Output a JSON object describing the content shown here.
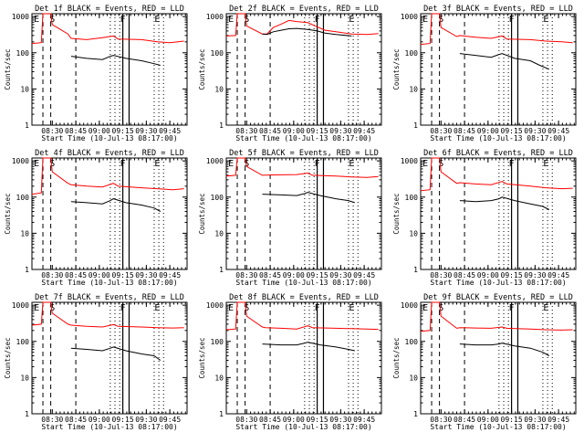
{
  "figure": {
    "xtick_labels": [
      "08:30",
      "08:45",
      "09:00",
      "09:15",
      "09:30",
      "09:45"
    ],
    "ytick_labels": [
      "1",
      "10",
      "100",
      "1000"
    ],
    "ylabel": "Counts/sec",
    "xlabel": "Start Time (10-Jul-13 08:17:00)",
    "markers": [
      "E",
      "S",
      "F",
      "E"
    ],
    "colors": {
      "events": "#000000",
      "lld": "#ff0000"
    }
  },
  "chart_data": [
    {
      "type": "line",
      "title": "Det 1f BLACK = Events, RED = LLD",
      "xlabel": "Start Time (10-Jul-13 08:17:00)",
      "ylabel": "Counts/sec",
      "x_unit": "minutes after 08:17:00",
      "xlim": [
        0,
        99
      ],
      "ylim": [
        1,
        1200
      ],
      "ylog": true,
      "series": [
        {
          "name": "LLD",
          "color": "#ff0000",
          "points": [
            [
              0,
              180
            ],
            [
              6,
              190
            ],
            [
              7,
              1200
            ],
            [
              12,
              1200
            ],
            [
              13,
              600
            ],
            [
              23,
              330
            ],
            [
              25,
              250
            ],
            [
              35,
              230
            ],
            [
              45,
              260
            ],
            [
              52,
              290
            ],
            [
              55,
              240
            ],
            [
              70,
              230
            ],
            [
              80,
              200
            ],
            [
              88,
              190
            ],
            [
              97,
              210
            ]
          ]
        },
        {
          "name": "Events",
          "color": "#000000",
          "points": [
            [
              25,
              80
            ],
            [
              35,
              70
            ],
            [
              45,
              65
            ],
            [
              50,
              80
            ],
            [
              52,
              85
            ],
            [
              60,
              70
            ],
            [
              70,
              60
            ],
            [
              78,
              50
            ],
            [
              82,
              45
            ]
          ]
        }
      ]
    },
    {
      "type": "line",
      "title": "Det 2f BLACK = Events, RED = LLD",
      "xlabel": "Start Time (10-Jul-13 08:17:00)",
      "ylabel": "Counts/sec",
      "x_unit": "minutes after 08:17:00",
      "xlim": [
        0,
        99
      ],
      "ylim": [
        1,
        1200
      ],
      "ylog": true,
      "series": [
        {
          "name": "LLD",
          "color": "#ff0000",
          "points": [
            [
              0,
              290
            ],
            [
              6,
              300
            ],
            [
              7,
              1200
            ],
            [
              12,
              1200
            ],
            [
              13,
              550
            ],
            [
              23,
              330
            ],
            [
              26,
              330
            ],
            [
              30,
              500
            ],
            [
              35,
              620
            ],
            [
              40,
              780
            ],
            [
              45,
              730
            ],
            [
              52,
              680
            ],
            [
              58,
              520
            ],
            [
              63,
              420
            ],
            [
              70,
              380
            ],
            [
              80,
              330
            ],
            [
              90,
              320
            ],
            [
              97,
              340
            ]
          ]
        },
        {
          "name": "Events",
          "color": "#000000",
          "points": [
            [
              23,
              330
            ],
            [
              26,
              320
            ],
            [
              30,
              380
            ],
            [
              35,
              420
            ],
            [
              40,
              460
            ],
            [
              45,
              470
            ],
            [
              52,
              440
            ],
            [
              58,
              400
            ],
            [
              63,
              350
            ],
            [
              70,
              320
            ],
            [
              80,
              290
            ]
          ]
        }
      ]
    },
    {
      "type": "line",
      "title": "Det 3f BLACK = Events, RED = LLD",
      "xlabel": "Start Time (10-Jul-13 08:17:00)",
      "ylabel": "Counts/sec",
      "x_unit": "minutes after 08:17:00",
      "xlim": [
        0,
        99
      ],
      "ylim": [
        1,
        1200
      ],
      "ylog": true,
      "series": [
        {
          "name": "LLD",
          "color": "#ff0000",
          "points": [
            [
              0,
              170
            ],
            [
              6,
              180
            ],
            [
              7,
              1200
            ],
            [
              12,
              1200
            ],
            [
              13,
              500
            ],
            [
              23,
              280
            ],
            [
              25,
              300
            ],
            [
              35,
              270
            ],
            [
              45,
              250
            ],
            [
              52,
              290
            ],
            [
              55,
              240
            ],
            [
              70,
              230
            ],
            [
              80,
              210
            ],
            [
              90,
              200
            ],
            [
              97,
              190
            ]
          ]
        },
        {
          "name": "Events",
          "color": "#000000",
          "points": [
            [
              25,
              95
            ],
            [
              35,
              85
            ],
            [
              45,
              75
            ],
            [
              50,
              90
            ],
            [
              52,
              95
            ],
            [
              60,
              70
            ],
            [
              70,
              60
            ],
            [
              76,
              45
            ],
            [
              82,
              35
            ]
          ]
        }
      ]
    },
    {
      "type": "line",
      "title": "Det 4f BLACK = Events, RED = LLD",
      "xlabel": "Start Time (10-Jul-13 08:17:00)",
      "ylabel": "Counts/sec",
      "x_unit": "minutes after 08:17:00",
      "xlim": [
        0,
        99
      ],
      "ylim": [
        1,
        1200
      ],
      "ylog": true,
      "series": [
        {
          "name": "LLD",
          "color": "#ff0000",
          "points": [
            [
              0,
              120
            ],
            [
              6,
              130
            ],
            [
              7,
              1200
            ],
            [
              12,
              1200
            ],
            [
              13,
              500
            ],
            [
              23,
              240
            ],
            [
              25,
              220
            ],
            [
              35,
              200
            ],
            [
              45,
              190
            ],
            [
              52,
              240
            ],
            [
              55,
              200
            ],
            [
              70,
              180
            ],
            [
              80,
              170
            ],
            [
              90,
              160
            ],
            [
              97,
              170
            ]
          ]
        },
        {
          "name": "Events",
          "color": "#000000",
          "points": [
            [
              25,
              75
            ],
            [
              35,
              70
            ],
            [
              45,
              65
            ],
            [
              50,
              80
            ],
            [
              52,
              90
            ],
            [
              60,
              70
            ],
            [
              70,
              60
            ],
            [
              78,
              50
            ],
            [
              82,
              40
            ]
          ]
        }
      ]
    },
    {
      "type": "line",
      "title": "Det 5f BLACK = Events, RED = LLD",
      "xlabel": "Start Time (10-Jul-13 08:17:00)",
      "ylabel": "Counts/sec",
      "x_unit": "minutes after 08:17:00",
      "xlim": [
        0,
        99
      ],
      "ylim": [
        1,
        1200
      ],
      "ylog": true,
      "series": [
        {
          "name": "LLD",
          "color": "#ff0000",
          "points": [
            [
              0,
              380
            ],
            [
              6,
              400
            ],
            [
              7,
              1200
            ],
            [
              12,
              1200
            ],
            [
              13,
              700
            ],
            [
              23,
              400
            ],
            [
              30,
              410
            ],
            [
              45,
              420
            ],
            [
              52,
              460
            ],
            [
              55,
              400
            ],
            [
              70,
              380
            ],
            [
              80,
              360
            ],
            [
              90,
              350
            ],
            [
              97,
              370
            ]
          ]
        },
        {
          "name": "Events",
          "color": "#000000",
          "points": [
            [
              23,
              120
            ],
            [
              35,
              115
            ],
            [
              45,
              110
            ],
            [
              50,
              125
            ],
            [
              52,
              135
            ],
            [
              60,
              110
            ],
            [
              70,
              90
            ],
            [
              78,
              80
            ],
            [
              82,
              70
            ]
          ]
        }
      ]
    },
    {
      "type": "line",
      "title": "Det 6f BLACK = Events, RED = LLD",
      "xlabel": "Start Time (10-Jul-13 08:17:00)",
      "ylabel": "Counts/sec",
      "x_unit": "minutes after 08:17:00",
      "xlim": [
        0,
        99
      ],
      "ylim": [
        1,
        1200
      ],
      "ylog": true,
      "series": [
        {
          "name": "LLD",
          "color": "#ff0000",
          "points": [
            [
              0,
              150
            ],
            [
              6,
              160
            ],
            [
              7,
              1200
            ],
            [
              12,
              1200
            ],
            [
              13,
              500
            ],
            [
              23,
              240
            ],
            [
              25,
              250
            ],
            [
              35,
              230
            ],
            [
              45,
              220
            ],
            [
              52,
              270
            ],
            [
              55,
              230
            ],
            [
              70,
              200
            ],
            [
              80,
              180
            ],
            [
              90,
              170
            ],
            [
              97,
              175
            ]
          ]
        },
        {
          "name": "Events",
          "color": "#000000",
          "points": [
            [
              25,
              80
            ],
            [
              35,
              75
            ],
            [
              45,
              80
            ],
            [
              50,
              90
            ],
            [
              52,
              100
            ],
            [
              60,
              80
            ],
            [
              70,
              65
            ],
            [
              78,
              55
            ],
            [
              82,
              45
            ]
          ]
        }
      ]
    },
    {
      "type": "line",
      "title": "Det 7f BLACK = Events, RED = LLD",
      "xlabel": "Start Time (10-Jul-13 08:17:00)",
      "ylabel": "Counts/sec",
      "x_unit": "minutes after 08:17:00",
      "xlim": [
        0,
        99
      ],
      "ylim": [
        1,
        1200
      ],
      "ylog": true,
      "series": [
        {
          "name": "LLD",
          "color": "#ff0000",
          "points": [
            [
              0,
              280
            ],
            [
              6,
              300
            ],
            [
              7,
              1200
            ],
            [
              12,
              1200
            ],
            [
              13,
              600
            ],
            [
              23,
              300
            ],
            [
              25,
              280
            ],
            [
              35,
              260
            ],
            [
              45,
              250
            ],
            [
              52,
              290
            ],
            [
              55,
              260
            ],
            [
              70,
              250
            ],
            [
              80,
              240
            ],
            [
              90,
              235
            ],
            [
              97,
              240
            ]
          ]
        },
        {
          "name": "Events",
          "color": "#000000",
          "points": [
            [
              25,
              65
            ],
            [
              35,
              60
            ],
            [
              45,
              55
            ],
            [
              50,
              65
            ],
            [
              52,
              70
            ],
            [
              60,
              55
            ],
            [
              70,
              45
            ],
            [
              78,
              40
            ],
            [
              82,
              30
            ]
          ]
        }
      ]
    },
    {
      "type": "line",
      "title": "Det 8f BLACK = Events, RED = LLD",
      "xlabel": "Start Time (10-Jul-13 08:17:00)",
      "ylabel": "Counts/sec",
      "x_unit": "minutes after 08:17:00",
      "xlim": [
        0,
        99
      ],
      "ylim": [
        1,
        1200
      ],
      "ylog": true,
      "series": [
        {
          "name": "LLD",
          "color": "#ff0000",
          "points": [
            [
              0,
              210
            ],
            [
              6,
              220
            ],
            [
              7,
              1200
            ],
            [
              12,
              1200
            ],
            [
              13,
              500
            ],
            [
              23,
              250
            ],
            [
              25,
              240
            ],
            [
              35,
              230
            ],
            [
              45,
              220
            ],
            [
              52,
              270
            ],
            [
              55,
              240
            ],
            [
              70,
              230
            ],
            [
              80,
              225
            ],
            [
              90,
              220
            ],
            [
              97,
              215
            ]
          ]
        },
        {
          "name": "Events",
          "color": "#000000",
          "points": [
            [
              23,
              85
            ],
            [
              35,
              80
            ],
            [
              45,
              80
            ],
            [
              50,
              90
            ],
            [
              52,
              95
            ],
            [
              60,
              80
            ],
            [
              70,
              70
            ],
            [
              78,
              60
            ],
            [
              82,
              55
            ]
          ]
        }
      ]
    },
    {
      "type": "line",
      "title": "Det 9f BLACK = Events, RED = LLD",
      "xlabel": "Start Time (10-Jul-13 08:17:00)",
      "ylabel": "Counts/sec",
      "x_unit": "minutes after 08:17:00",
      "xlim": [
        0,
        99
      ],
      "ylim": [
        1,
        1200
      ],
      "ylog": true,
      "series": [
        {
          "name": "LLD",
          "color": "#ff0000",
          "points": [
            [
              0,
              190
            ],
            [
              6,
              200
            ],
            [
              7,
              1200
            ],
            [
              12,
              1200
            ],
            [
              13,
              500
            ],
            [
              23,
              230
            ],
            [
              25,
              240
            ],
            [
              35,
              235
            ],
            [
              45,
              230
            ],
            [
              52,
              250
            ],
            [
              55,
              230
            ],
            [
              70,
              220
            ],
            [
              80,
              210
            ],
            [
              90,
              205
            ],
            [
              97,
              210
            ]
          ]
        },
        {
          "name": "Events",
          "color": "#000000",
          "points": [
            [
              25,
              85
            ],
            [
              35,
              80
            ],
            [
              45,
              80
            ],
            [
              50,
              85
            ],
            [
              52,
              90
            ],
            [
              60,
              75
            ],
            [
              70,
              65
            ],
            [
              78,
              50
            ],
            [
              82,
              40
            ]
          ]
        }
      ]
    }
  ]
}
